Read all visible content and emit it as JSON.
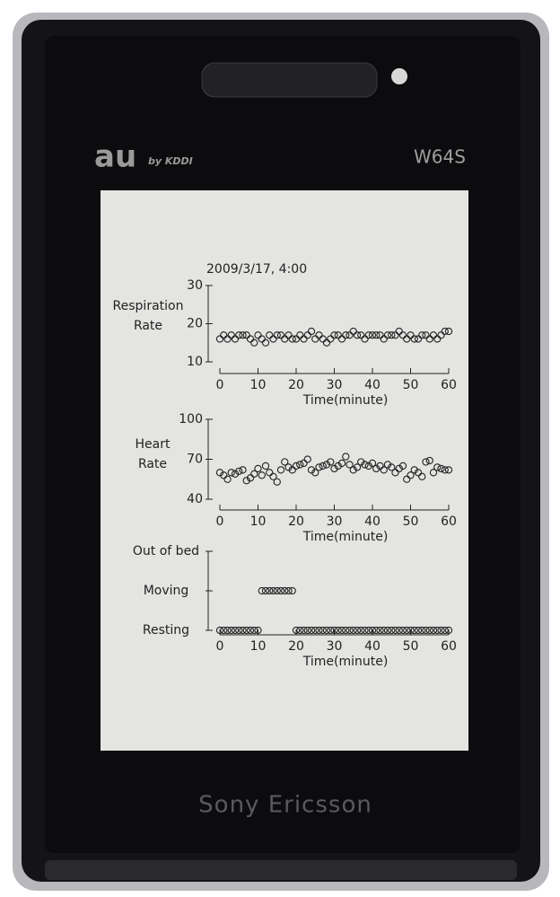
{
  "device": {
    "brand": "au",
    "carrier": "by KDDI",
    "model": "W64S",
    "maker": "Sony Ericsson"
  },
  "chart_data": [
    {
      "type": "scatter",
      "title": "2009/3/17, 4:00",
      "ylabel": "Respiration Rate",
      "xlabel": "Time(minute)",
      "color": "#222222",
      "grid": false,
      "xlim": [
        0,
        60
      ],
      "xticks": [
        0,
        10,
        20,
        30,
        40,
        50,
        60
      ],
      "ylim": [
        10,
        30
      ],
      "yticks": [
        10,
        20,
        30
      ],
      "x": [
        0,
        1,
        2,
        3,
        4,
        5,
        6,
        7,
        8,
        9,
        10,
        11,
        12,
        13,
        14,
        15,
        16,
        17,
        18,
        19,
        20,
        21,
        22,
        23,
        24,
        25,
        26,
        27,
        28,
        29,
        30,
        31,
        32,
        33,
        34,
        35,
        36,
        37,
        38,
        39,
        40,
        41,
        42,
        43,
        44,
        45,
        46,
        47,
        48,
        49,
        50,
        51,
        52,
        53,
        54,
        55,
        56,
        57,
        58,
        59,
        60
      ],
      "values": [
        16,
        17,
        16,
        17,
        16,
        17,
        17,
        17,
        16,
        15,
        17,
        16,
        15,
        17,
        16,
        17,
        17,
        16,
        17,
        16,
        16,
        17,
        16,
        17,
        18,
        16,
        17,
        16,
        15,
        16,
        17,
        17,
        16,
        17,
        17,
        18,
        17,
        17,
        16,
        17,
        17,
        17,
        17,
        16,
        17,
        17,
        17,
        18,
        17,
        16,
        17,
        16,
        16,
        17,
        17,
        16,
        17,
        16,
        17,
        18,
        18
      ]
    },
    {
      "type": "scatter",
      "ylabel": "Heart Rate",
      "xlabel": "Time(minute)",
      "color": "#222222",
      "grid": false,
      "xlim": [
        0,
        60
      ],
      "xticks": [
        0,
        10,
        20,
        30,
        40,
        50,
        60
      ],
      "ylim": [
        40,
        100
      ],
      "yticks": [
        40,
        70,
        100
      ],
      "x": [
        0,
        1,
        2,
        3,
        4,
        5,
        6,
        7,
        8,
        9,
        10,
        11,
        12,
        13,
        14,
        15,
        16,
        17,
        18,
        19,
        20,
        21,
        22,
        23,
        24,
        25,
        26,
        27,
        28,
        29,
        30,
        31,
        32,
        33,
        34,
        35,
        36,
        37,
        38,
        39,
        40,
        41,
        42,
        43,
        44,
        45,
        46,
        47,
        48,
        49,
        50,
        51,
        52,
        53,
        54,
        55,
        56,
        57,
        58,
        59,
        60
      ],
      "values": [
        60,
        58,
        55,
        60,
        59,
        61,
        62,
        54,
        56,
        59,
        63,
        58,
        65,
        60,
        57,
        53,
        62,
        68,
        64,
        62,
        65,
        66,
        67,
        70,
        62,
        60,
        64,
        65,
        66,
        68,
        63,
        65,
        67,
        72,
        66,
        62,
        64,
        68,
        66,
        65,
        67,
        63,
        65,
        62,
        66,
        64,
        60,
        63,
        65,
        55,
        58,
        62,
        60,
        57,
        68,
        69,
        60,
        64,
        63,
        62,
        62
      ]
    },
    {
      "type": "scatter",
      "xlabel": "Time(minute)",
      "color": "#222222",
      "grid": false,
      "xlim": [
        0,
        60
      ],
      "xticks": [
        0,
        10,
        20,
        30,
        40,
        50,
        60
      ],
      "ylim": [
        0,
        2
      ],
      "yticks": [
        {
          "value": 0,
          "label": "Resting"
        },
        {
          "value": 1,
          "label": "Moving"
        },
        {
          "value": 2,
          "label": "Out of bed"
        }
      ],
      "x": [
        0,
        1,
        2,
        3,
        4,
        5,
        6,
        7,
        8,
        9,
        10,
        11,
        12,
        13,
        14,
        15,
        16,
        17,
        18,
        19,
        20,
        21,
        22,
        23,
        24,
        25,
        26,
        27,
        28,
        29,
        30,
        31,
        32,
        33,
        34,
        35,
        36,
        37,
        38,
        39,
        40,
        41,
        42,
        43,
        44,
        45,
        46,
        47,
        48,
        49,
        50,
        51,
        52,
        53,
        54,
        55,
        56,
        57,
        58,
        59,
        60
      ],
      "values": [
        0,
        0,
        0,
        0,
        0,
        0,
        0,
        0,
        0,
        0,
        0,
        1,
        1,
        1,
        1,
        1,
        1,
        1,
        1,
        1,
        0,
        0,
        0,
        0,
        0,
        0,
        0,
        0,
        0,
        0,
        0,
        0,
        0,
        0,
        0,
        0,
        0,
        0,
        0,
        0,
        0,
        0,
        0,
        0,
        0,
        0,
        0,
        0,
        0,
        0,
        0,
        0,
        0,
        0,
        0,
        0,
        0,
        0,
        0,
        0,
        0
      ]
    }
  ]
}
